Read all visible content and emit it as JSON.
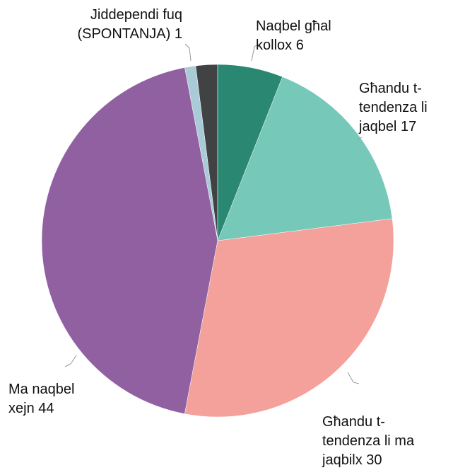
{
  "chart_data": {
    "type": "pie",
    "categories": [
      "Naqbel għal kollox",
      "Għandu t-tendenza li jaqbel",
      "Għandu t-tendenza li ma jaqbilx",
      "Ma naqbel xejn",
      "Jiddependi fuq (SPONTANJA)",
      null
    ],
    "values": [
      6,
      17,
      30,
      44,
      1,
      2
    ],
    "colors": [
      "#2a8872",
      "#76c8b9",
      "#f4a09b",
      "#9160a1",
      "#a9cbd8",
      "#404244"
    ]
  }
}
